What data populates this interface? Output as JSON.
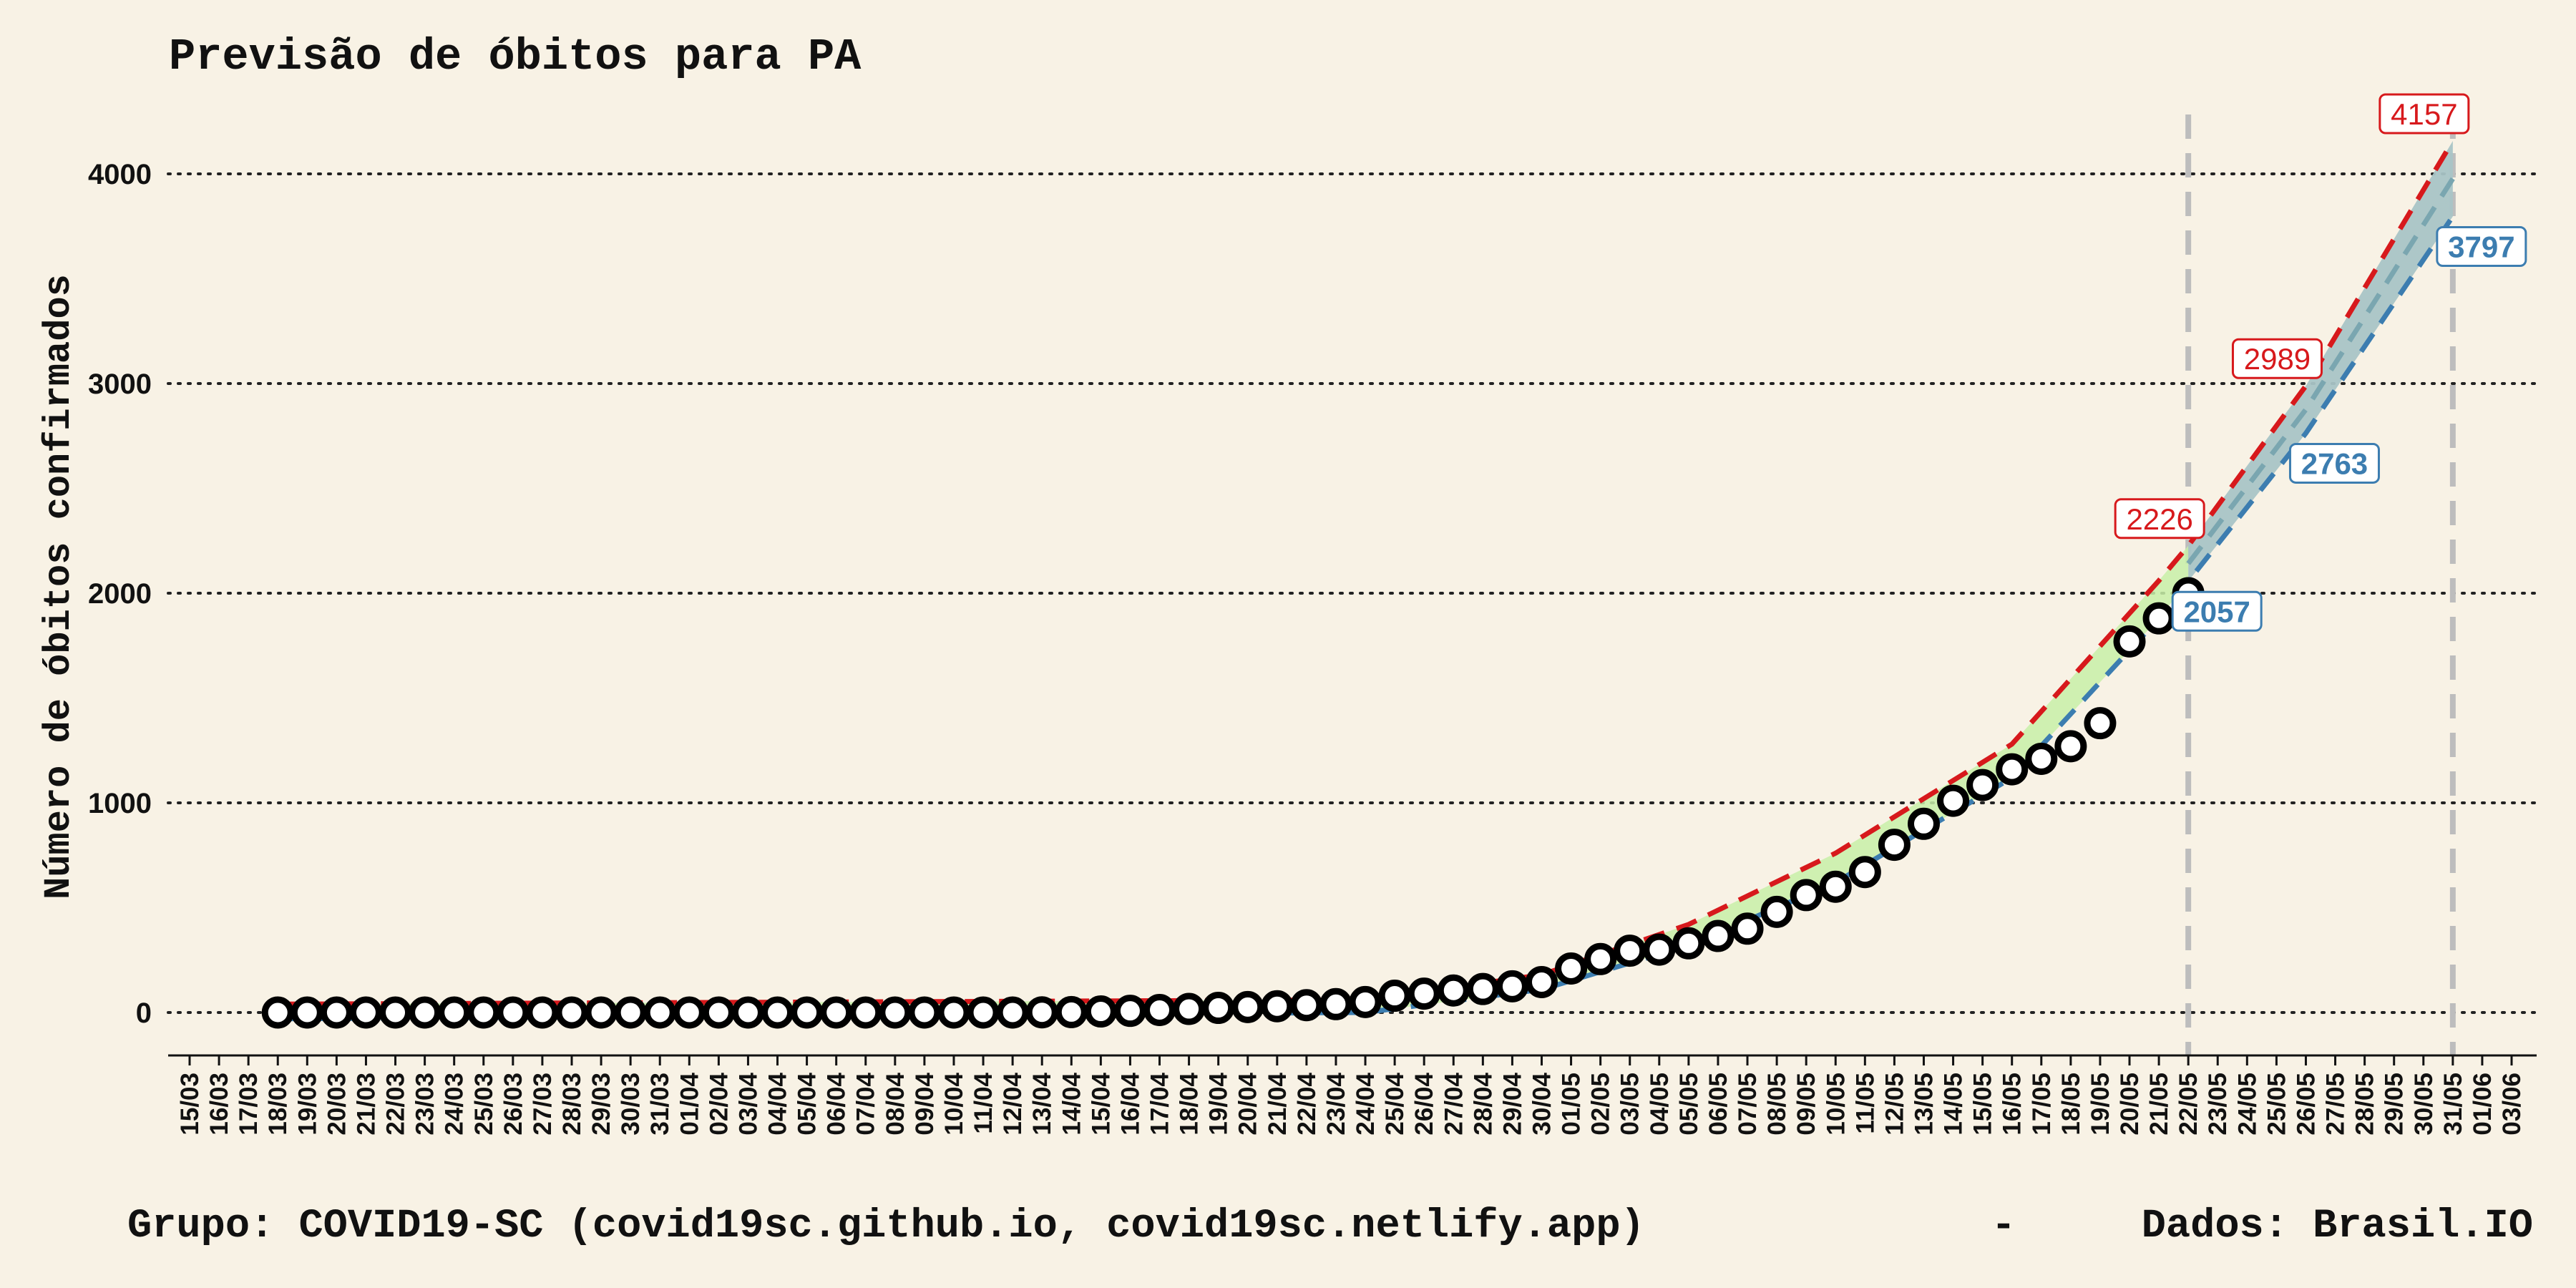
{
  "chart_data": {
    "type": "line",
    "title": "Previsão de óbitos para PA",
    "ylabel": "Número de óbitos confirmados",
    "xlabel": "",
    "footer_left": "Grupo: COVID19-SC (covid19sc.github.io, covid19sc.netlify.app)",
    "footer_sep": "-",
    "footer_right": "Dados: Brasil.IO",
    "ylim": [
      -200,
      4200
    ],
    "yticks": [
      0,
      1000,
      2000,
      3000,
      4000
    ],
    "grid": "horizontal-dotted",
    "dates": [
      "15/03",
      "16/03",
      "17/03",
      "18/03",
      "19/03",
      "20/03",
      "21/03",
      "22/03",
      "23/03",
      "24/03",
      "25/03",
      "26/03",
      "27/03",
      "28/03",
      "29/03",
      "30/03",
      "31/03",
      "01/04",
      "02/04",
      "03/04",
      "04/04",
      "05/04",
      "06/04",
      "07/04",
      "08/04",
      "09/04",
      "10/04",
      "11/04",
      "12/04",
      "13/04",
      "14/04",
      "15/04",
      "16/04",
      "17/04",
      "18/04",
      "19/04",
      "20/04",
      "21/04",
      "22/04",
      "23/04",
      "24/04",
      "25/04",
      "26/04",
      "27/04",
      "28/04",
      "29/04",
      "30/04",
      "01/05",
      "02/05",
      "03/05",
      "04/05",
      "05/05",
      "06/05",
      "07/05",
      "08/05",
      "09/05",
      "10/05",
      "11/05",
      "12/05",
      "13/05",
      "14/05",
      "15/05",
      "16/05",
      "17/05",
      "18/05",
      "19/05",
      "20/05",
      "21/05",
      "22/05",
      "23/05",
      "24/05",
      "25/05",
      "26/05",
      "27/05",
      "28/05",
      "29/05",
      "30/05",
      "31/05",
      "01/06",
      "03/06"
    ],
    "observed": {
      "name": "",
      "start_date": "18/03",
      "values": [
        0,
        0,
        0,
        0,
        0,
        0,
        0,
        0,
        0,
        0,
        0,
        0,
        0,
        0,
        0,
        0,
        0,
        0,
        0,
        0,
        0,
        0,
        0,
        0,
        0,
        0,
        1,
        2,
        5,
        8,
        12,
        17,
        22,
        26,
        30,
        35,
        40,
        50,
        80,
        90,
        105,
        112,
        125,
        145,
        210,
        255,
        295,
        300,
        330,
        365,
        400,
        480,
        560,
        600,
        670,
        800,
        900,
        1010,
        1085,
        1160,
        1210,
        1270,
        1380,
        1770,
        1880,
        2000
      ]
    },
    "fit_upper": {
      "color": "#d7191c",
      "dates": [
        "18/03",
        "24/04",
        "30/04",
        "05/05",
        "10/05",
        "16/05",
        "21/05",
        "22/05",
        "26/05",
        "31/05"
      ],
      "values": [
        40,
        60,
        180,
        420,
        760,
        1280,
        2060,
        2226,
        2989,
        4157
      ]
    },
    "fit_lower": {
      "color": "#3c7db0",
      "dates": [
        "18/03",
        "24/04",
        "30/04",
        "05/05",
        "10/05",
        "16/05",
        "21/05",
        "22/05",
        "26/05",
        "31/05"
      ],
      "values": [
        -30,
        0,
        110,
        320,
        620,
        1120,
        1880,
        2057,
        2763,
        3797
      ]
    },
    "forecast_band_color": "#a9c4c6",
    "fit_band_color": "#c8f0a8",
    "forecast_markers": [
      "22/05",
      "31/05"
    ],
    "labels": [
      {
        "date": "22/05",
        "value": 2226,
        "text": "2226",
        "series": "upper"
      },
      {
        "date": "22/05",
        "value": 2057,
        "text": "2057",
        "series": "lower"
      },
      {
        "date": "26/05",
        "value": 2989,
        "text": "2989",
        "series": "upper"
      },
      {
        "date": "26/05",
        "value": 2763,
        "text": "2763",
        "series": "lower"
      },
      {
        "date": "31/05",
        "value": 4157,
        "text": "4157",
        "series": "upper"
      },
      {
        "date": "31/05",
        "value": 3797,
        "text": "3797",
        "series": "lower"
      }
    ]
  }
}
